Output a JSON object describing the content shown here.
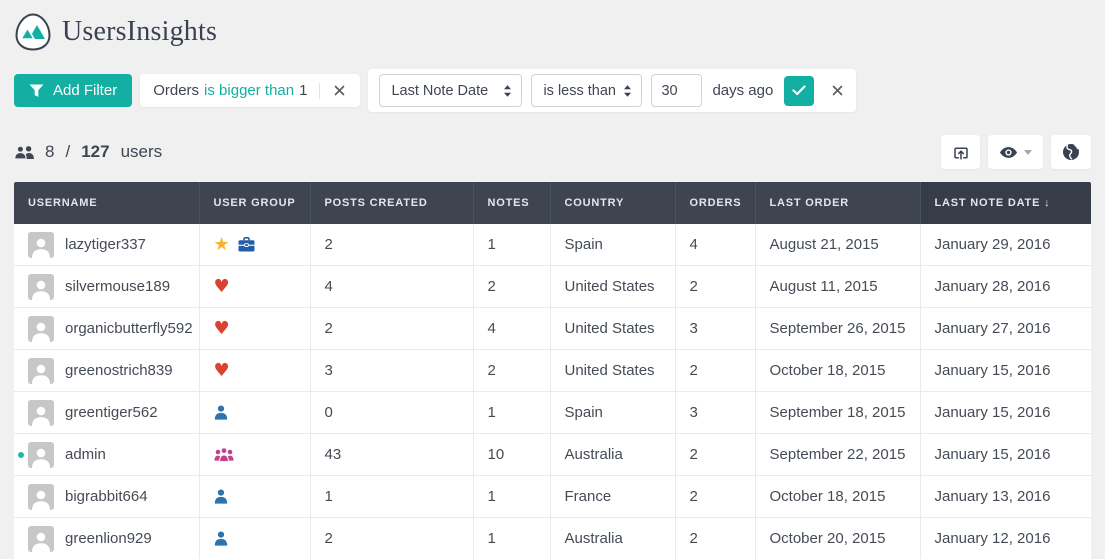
{
  "brand": {
    "name": "UsersInsights",
    "logo_icon": "mountains-logo-icon",
    "accent_color": "#13afa2"
  },
  "filter_bar": {
    "add_filter_label": "Add Filter",
    "add_filter_icon": "funnel-icon",
    "applied_filter": {
      "field": "Orders",
      "operator": "is bigger than",
      "value": "1",
      "remove_icon": "close-icon"
    },
    "editor": {
      "field_select": "Last Note Date",
      "operator_select": "is less than",
      "value_input": "30",
      "suffix_label": "days ago",
      "apply_icon": "check-icon",
      "cancel_icon": "close-icon"
    }
  },
  "stats": {
    "users_icon": "users-icon",
    "shown": "8",
    "separator": "/",
    "total": "127",
    "suffix": "users"
  },
  "toolbar": {
    "buttons": [
      {
        "icon": "export-icon"
      },
      {
        "icon": "eye-icon",
        "has_caret": true
      },
      {
        "icon": "globe-icon"
      }
    ]
  },
  "table": {
    "columns": [
      "USERNAME",
      "USER GROUP",
      "POSTS CREATED",
      "NOTES",
      "COUNTRY",
      "ORDERS",
      "LAST ORDER",
      "LAST NOTE DATE ↓"
    ],
    "sorted_column": "LAST NOTE DATE",
    "rows": [
      {
        "username": "lazytiger337",
        "online": false,
        "group_icons": [
          "star-icon",
          "briefcase-icon"
        ],
        "posts_created": "2",
        "notes": "1",
        "country": "Spain",
        "orders": "4",
        "last_order": "August 21, 2015",
        "last_note_date": "January 29, 2016"
      },
      {
        "username": "silvermouse189",
        "online": false,
        "group_icons": [
          "heart-icon"
        ],
        "posts_created": "4",
        "notes": "2",
        "country": "United States",
        "orders": "2",
        "last_order": "August 11, 2015",
        "last_note_date": "January 28, 2016"
      },
      {
        "username": "organicbutterfly592",
        "online": false,
        "group_icons": [
          "heart-icon"
        ],
        "posts_created": "2",
        "notes": "4",
        "country": "United States",
        "orders": "3",
        "last_order": "September 26, 2015",
        "last_note_date": "January 27, 2016"
      },
      {
        "username": "greenostrich839",
        "online": false,
        "group_icons": [
          "heart-icon"
        ],
        "posts_created": "3",
        "notes": "2",
        "country": "United States",
        "orders": "2",
        "last_order": "October 18, 2015",
        "last_note_date": "January 15, 2016"
      },
      {
        "username": "greentiger562",
        "online": false,
        "group_icons": [
          "user-icon"
        ],
        "posts_created": "0",
        "notes": "1",
        "country": "Spain",
        "orders": "3",
        "last_order": "September 18, 2015",
        "last_note_date": "January 15, 2016"
      },
      {
        "username": "admin",
        "online": true,
        "group_icons": [
          "group-icon"
        ],
        "posts_created": "43",
        "notes": "10",
        "country": "Australia",
        "orders": "2",
        "last_order": "September 22, 2015",
        "last_note_date": "January 15, 2016"
      },
      {
        "username": "bigrabbit664",
        "online": false,
        "group_icons": [
          "user-icon"
        ],
        "posts_created": "1",
        "notes": "1",
        "country": "France",
        "orders": "2",
        "last_order": "October 18, 2015",
        "last_note_date": "January 13, 2016"
      },
      {
        "username": "greenlion929",
        "online": false,
        "group_icons": [
          "user-icon"
        ],
        "posts_created": "2",
        "notes": "1",
        "country": "Australia",
        "orders": "2",
        "last_order": "October 20, 2015",
        "last_note_date": "January 12, 2016"
      }
    ]
  },
  "icon_colors": {
    "star-icon": "#f2b632",
    "briefcase-icon": "#235fa8",
    "heart-icon": "#d9432f",
    "user-icon": "#2d74ae",
    "group-icon": "#c2418f",
    "online-dot": "#1fb9a7"
  }
}
